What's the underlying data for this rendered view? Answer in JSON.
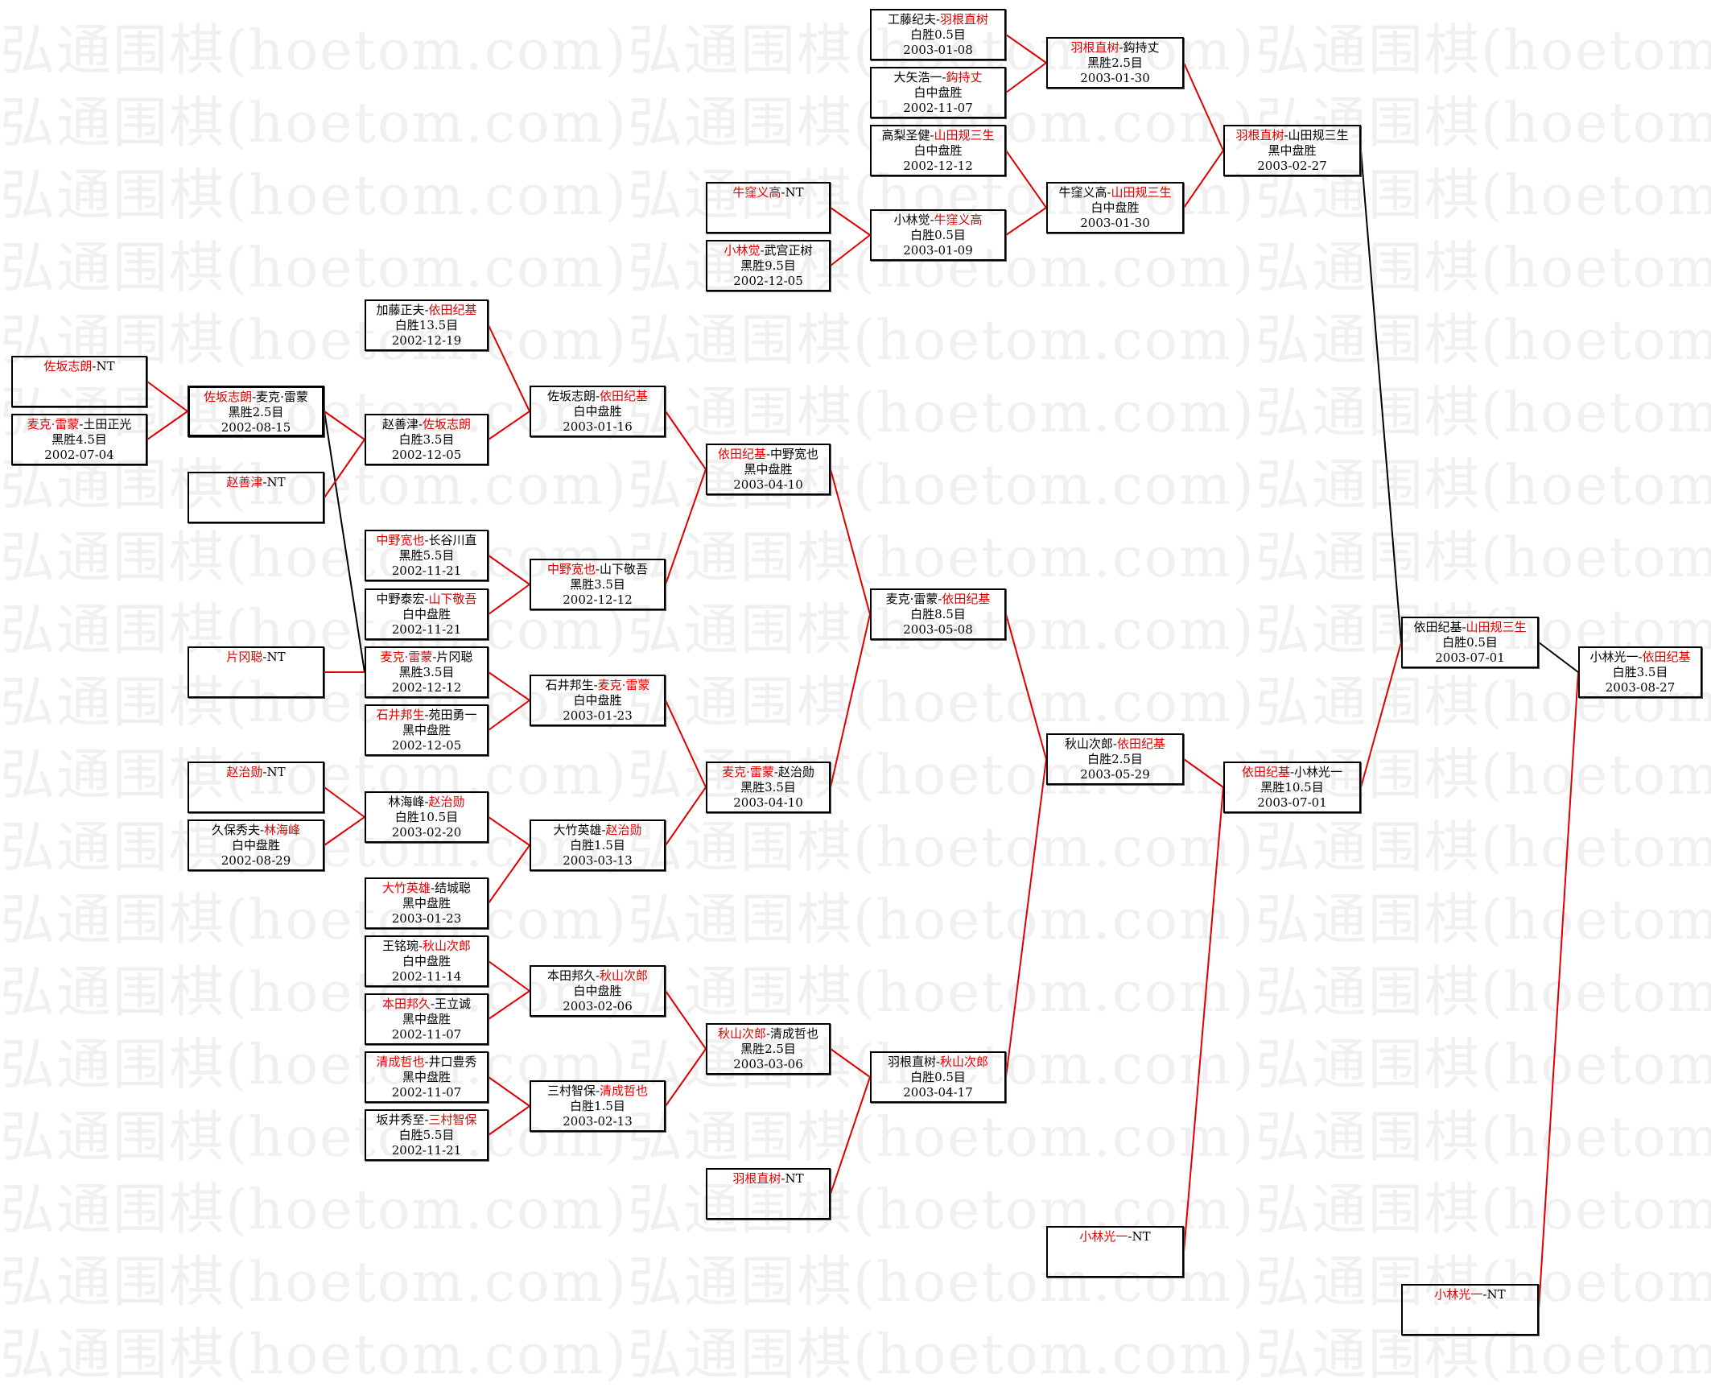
{
  "watermark": "弘通围棋(hoetom.com)",
  "colors": {
    "winner_text": "#e00000",
    "win_line": "#e00000",
    "other_line": "#000000",
    "box_border": "#000000"
  },
  "nt_suffix": "NT",
  "separator": "-",
  "matches": [
    {
      "nt": true,
      "p1": "佐坂志朗"
    },
    {
      "p1": "麦克·雷蒙",
      "p2": "土田正光",
      "winner": 1,
      "result": "黑胜4.5目",
      "date": "2002-07-04"
    },
    {
      "p1": "佐坂志朗",
      "p2": "麦克·雷蒙",
      "winner": 1,
      "result": "黑胜2.5目",
      "date": "2002-08-15"
    },
    {
      "nt": true,
      "p1": "赵善津"
    },
    {
      "nt": true,
      "p1": "片冈聪"
    },
    {
      "nt": true,
      "p1": "赵治勋"
    },
    {
      "p1": "久保秀夫",
      "p2": "林海峰",
      "winner": 2,
      "result": "白中盘胜",
      "date": "2002-08-29"
    },
    {
      "p1": "加藤正夫",
      "p2": "依田纪基",
      "winner": 2,
      "result": "白胜13.5目",
      "date": "2002-12-19"
    },
    {
      "p1": "赵善津",
      "p2": "佐坂志朗",
      "winner": 2,
      "result": "白胜3.5目",
      "date": "2002-12-05"
    },
    {
      "p1": "中野宽也",
      "p2": "长谷川直",
      "winner": 1,
      "result": "黑胜5.5目",
      "date": "2002-11-21"
    },
    {
      "p1": "中野泰宏",
      "p2": "山下敬吾",
      "winner": 2,
      "result": "白中盘胜",
      "date": "2002-11-21"
    },
    {
      "p1": "麦克·雷蒙",
      "p2": "片冈聪",
      "winner": 1,
      "result": "黑胜3.5目",
      "date": "2002-12-12"
    },
    {
      "p1": "石井邦生",
      "p2": "苑田勇一",
      "winner": 1,
      "result": "黑中盘胜",
      "date": "2002-12-05"
    },
    {
      "p1": "林海峰",
      "p2": "赵治勋",
      "winner": 2,
      "result": "白胜10.5目",
      "date": "2003-02-20"
    },
    {
      "p1": "大竹英雄",
      "p2": "结城聪",
      "winner": 1,
      "result": "黑中盘胜",
      "date": "2003-01-23"
    },
    {
      "p1": "王铭琬",
      "p2": "秋山次郎",
      "winner": 2,
      "result": "白中盘胜",
      "date": "2002-11-14"
    },
    {
      "p1": "本田邦久",
      "p2": "王立诚",
      "winner": 1,
      "result": "黑中盘胜",
      "date": "2002-11-07"
    },
    {
      "p1": "清成哲也",
      "p2": "井口豊秀",
      "winner": 1,
      "result": "黑中盘胜",
      "date": "2002-11-07"
    },
    {
      "p1": "坂井秀至",
      "p2": "三村智保",
      "winner": 2,
      "result": "白胜5.5目",
      "date": "2002-11-21"
    },
    {
      "p1": "佐坂志朗",
      "p2": "依田纪基",
      "winner": 2,
      "result": "白中盘胜",
      "date": "2003-01-16"
    },
    {
      "p1": "中野宽也",
      "p2": "山下敬吾",
      "winner": 1,
      "result": "黑胜3.5目",
      "date": "2002-12-12"
    },
    {
      "p1": "石井邦生",
      "p2": "麦克·雷蒙",
      "winner": 2,
      "result": "白中盘胜",
      "date": "2003-01-23"
    },
    {
      "p1": "大竹英雄",
      "p2": "赵治勋",
      "winner": 2,
      "result": "白胜1.5目",
      "date": "2003-03-13"
    },
    {
      "p1": "本田邦久",
      "p2": "秋山次郎",
      "winner": 2,
      "result": "白中盘胜",
      "date": "2003-02-06"
    },
    {
      "p1": "三村智保",
      "p2": "清成哲也",
      "winner": 2,
      "result": "白胜1.5目",
      "date": "2003-02-13"
    },
    {
      "nt": true,
      "p1": "牛窪义高"
    },
    {
      "p1": "小林觉",
      "p2": "武宫正树",
      "winner": 1,
      "result": "黑胜9.5目",
      "date": "2002-12-05"
    },
    {
      "p1": "依田纪基",
      "p2": "中野宽也",
      "winner": 1,
      "result": "黑中盘胜",
      "date": "2003-04-10"
    },
    {
      "p1": "麦克·雷蒙",
      "p2": "赵治勋",
      "winner": 1,
      "result": "黑胜3.5目",
      "date": "2003-04-10"
    },
    {
      "p1": "秋山次郎",
      "p2": "清成哲也",
      "winner": 1,
      "result": "黑胜2.5目",
      "date": "2003-03-06"
    },
    {
      "nt": true,
      "p1": "羽根直树"
    },
    {
      "p1": "工藤纪夫",
      "p2": "羽根直树",
      "winner": 2,
      "result": "白胜0.5目",
      "date": "2003-01-08"
    },
    {
      "p1": "大矢浩一",
      "p2": "鈎持丈",
      "winner": 2,
      "result": "白中盘胜",
      "date": "2002-11-07"
    },
    {
      "p1": "高梨圣健",
      "p2": "山田规三生",
      "winner": 2,
      "result": "白中盘胜",
      "date": "2002-12-12"
    },
    {
      "p1": "小林觉",
      "p2": "牛窪义高",
      "winner": 2,
      "result": "白胜0.5目",
      "date": "2003-01-09"
    },
    {
      "p1": "麦克·雷蒙",
      "p2": "依田纪基",
      "winner": 2,
      "result": "白胜8.5目",
      "date": "2003-05-08"
    },
    {
      "p1": "羽根直树",
      "p2": "秋山次郎",
      "winner": 2,
      "result": "白胜0.5目",
      "date": "2003-04-17"
    },
    {
      "p1": "羽根直树",
      "p2": "鈎持丈",
      "winner": 1,
      "result": "黑胜2.5目",
      "date": "2003-01-30"
    },
    {
      "p1": "牛窪义高",
      "p2": "山田规三生",
      "winner": 2,
      "result": "白中盘胜",
      "date": "2003-01-30"
    },
    {
      "p1": "秋山次郎",
      "p2": "依田纪基",
      "winner": 2,
      "result": "白胜2.5目",
      "date": "2003-05-29"
    },
    {
      "nt": true,
      "p1": "小林光一"
    },
    {
      "p1": "羽根直树",
      "p2": "山田规三生",
      "winner": 1,
      "result": "黑中盘胜",
      "date": "2003-02-27"
    },
    {
      "p1": "依田纪基",
      "p2": "小林光一",
      "winner": 1,
      "result": "黑胜10.5目",
      "date": "2003-07-01"
    },
    {
      "p1": "依田纪基",
      "p2": "山田规三生",
      "winner": 2,
      "result": "白胜0.5目",
      "date": "2003-07-01"
    },
    {
      "nt": true,
      "p1": "小林光一"
    },
    {
      "p1": "小林光一",
      "p2": "依田纪基",
      "winner": 2,
      "result": "白胜3.5目",
      "date": "2003-08-27"
    }
  ]
}
